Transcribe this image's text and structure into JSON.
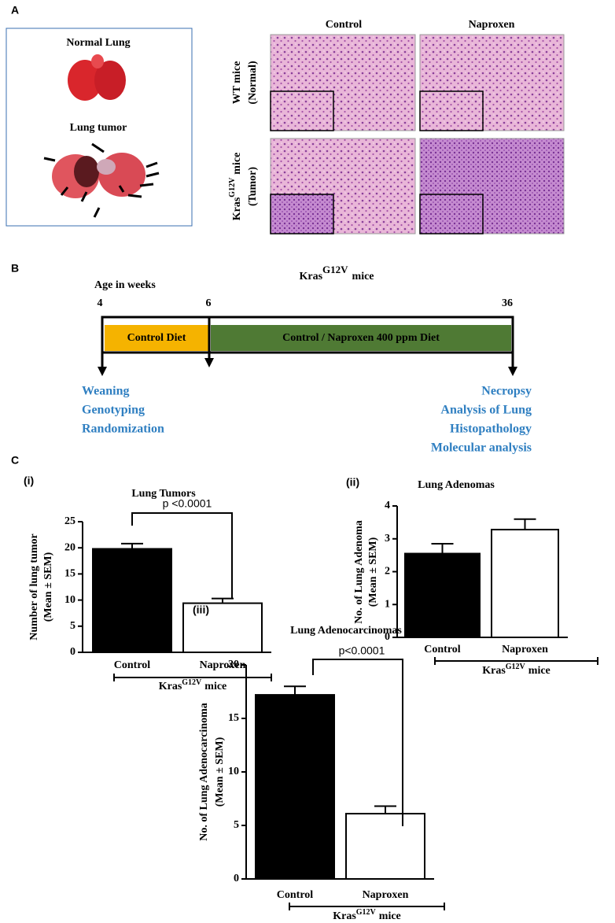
{
  "panel_a": {
    "label": "A",
    "normal_title": "Normal Lung",
    "tumor_title": "Lung tumor",
    "columns": [
      "Control",
      "Naproxen"
    ],
    "rows": [
      {
        "base": "WT mice",
        "note": "(Normal)"
      },
      {
        "base": "Kras",
        "sup": "G12V",
        "rest": "mice",
        "note": "(Tumor)"
      }
    ]
  },
  "panel_b": {
    "label": "B",
    "age_label": "Age in weeks",
    "title": {
      "base": "Kras",
      "sup": "G12V",
      "rest": "mice"
    },
    "weeks": [
      4,
      6,
      36
    ],
    "phases": [
      "Control Diet",
      "Control / Naproxen 400 ppm Diet"
    ],
    "start_steps": [
      "Weaning",
      "Genotyping",
      "Randomization"
    ],
    "end_steps": [
      "Necropsy",
      "Analysis of Lung",
      "Histopathology",
      "Molecular analysis"
    ]
  },
  "panel_c_label": "C",
  "chart_data": [
    {
      "type": "bar",
      "panel": "(i)",
      "title": "Lung Tumors",
      "ylabel": [
        "Number of lung tumor",
        "(Mean ± SEM)"
      ],
      "categories": [
        "Control",
        "Naproxen"
      ],
      "values": [
        19.8,
        9.4
      ],
      "errors": [
        1.0,
        0.9
      ],
      "colors": [
        "#000000",
        "#ffffff"
      ],
      "ylim": [
        0,
        25
      ],
      "yticks": [
        0,
        5,
        10,
        15,
        20,
        25
      ],
      "significance": "p <0.0001",
      "xlabel": {
        "base": "Kras",
        "sup": "G12V",
        "rest": "mice"
      }
    },
    {
      "type": "bar",
      "panel": "(ii)",
      "title": "Lung Adenomas",
      "ylabel": [
        "No. of Lung Adenoma",
        "(Mean ± SEM)"
      ],
      "categories": [
        "Control",
        "Naproxen"
      ],
      "values": [
        2.55,
        3.28
      ],
      "errors": [
        0.3,
        0.32
      ],
      "colors": [
        "#000000",
        "#ffffff"
      ],
      "ylim": [
        0,
        4
      ],
      "yticks": [
        0,
        1,
        2,
        3,
        4
      ],
      "xlabel": {
        "base": "Kras",
        "sup": "G12V",
        "rest": "mice"
      }
    },
    {
      "type": "bar",
      "panel": "(iii)",
      "title": "Lung Adenocarcinomas",
      "ylabel": [
        "No. of Lung Adenocarcinoma",
        "(Mean ± SEM)"
      ],
      "categories": [
        "Control",
        "Naproxen"
      ],
      "values": [
        17.2,
        6.1
      ],
      "errors": [
        0.8,
        0.7
      ],
      "colors": [
        "#000000",
        "#ffffff"
      ],
      "ylim": [
        0,
        20
      ],
      "yticks": [
        0,
        5,
        10,
        15,
        20
      ],
      "significance": "p<0.0001",
      "xlabel": {
        "base": "Kras",
        "sup": "G12V",
        "rest": "mice"
      }
    }
  ]
}
